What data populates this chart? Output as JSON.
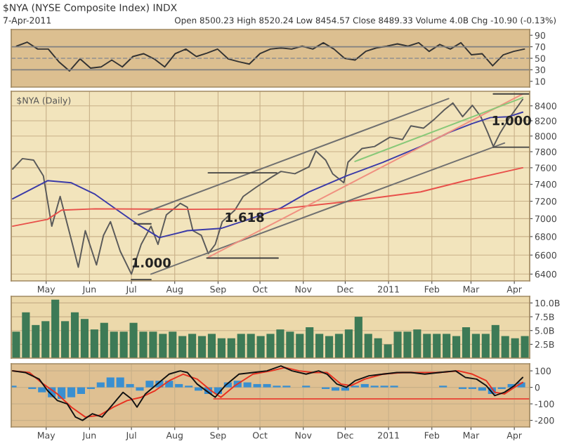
{
  "chart_data": [
    {
      "type": "line",
      "title": "$NYA (NYSE Composite Index) INDX",
      "subtitle": "7-Apr-2011",
      "annotations": [
        "Open 8500.23 High 8520.24 Low 8454.57 Close 8489.33 Volume 4.0B Chg -10.90 (-0.13%)"
      ],
      "categories": [
        null,
        null,
        null,
        null,
        null,
        null,
        null,
        null,
        null,
        null,
        null,
        null,
        null,
        null,
        null,
        null,
        null,
        null,
        null,
        null,
        null,
        null,
        null,
        null,
        null,
        null,
        null,
        null,
        null,
        null,
        null,
        null,
        null,
        null,
        null,
        null,
        null,
        null,
        null,
        null,
        null,
        null,
        null,
        null,
        null,
        null,
        null,
        null,
        null
      ],
      "ylim": [
        0,
        100
      ],
      "yticks": [
        10,
        30,
        50,
        70,
        90
      ],
      "ref_lines": [
        {
          "axis": "y",
          "value": 70,
          "color": "#808080"
        },
        {
          "axis": "y",
          "value": 50,
          "color": "#909090",
          "line_style": "dashed"
        },
        {
          "axis": "y",
          "value": 30,
          "color": "#808080"
        }
      ],
      "series": [
        {
          "color": "#333333",
          "values": [
            71,
            78,
            66,
            66,
            44,
            28,
            49,
            33,
            35,
            47,
            35,
            53,
            58,
            49,
            35,
            58,
            66,
            53,
            59,
            66,
            49,
            44,
            40,
            58,
            66,
            68,
            66,
            71,
            66,
            77,
            66,
            50,
            47,
            62,
            68,
            71,
            75,
            71,
            77,
            62,
            74,
            66,
            77,
            56,
            58,
            37,
            56,
            62,
            66
          ]
        }
      ]
    },
    {
      "type": "line",
      "log": "y",
      "annotations": [
        "$NYA (Daily)",
        "1.000",
        "1.618",
        "1.000"
      ],
      "xlim": [
        "2010-04-06",
        "2011-04-12"
      ],
      "xticks": [
        {
          "value": "2010-05-01",
          "label": "May"
        },
        {
          "value": "2010-06-01",
          "label": "Jun"
        },
        {
          "value": "2010-07-01",
          "label": "Jul"
        },
        {
          "value": "2010-08-01",
          "label": "Aug"
        },
        {
          "value": "2010-09-01",
          "label": "Sep"
        },
        {
          "value": "2010-10-01",
          "label": "Oct"
        },
        {
          "value": "2010-11-01",
          "label": "Nov"
        },
        {
          "value": "2010-12-01",
          "label": "Dec"
        },
        {
          "value": "2011-01-01",
          "label": "2011"
        },
        {
          "value": "2011-02-01",
          "label": "Feb"
        },
        {
          "value": "2011-03-01",
          "label": "Mar"
        },
        {
          "value": "2011-04-01",
          "label": "Apr"
        }
      ],
      "ylim": [
        6330,
        8600
      ],
      "yticks": [
        6400,
        6600,
        6800,
        7000,
        7200,
        7400,
        7600,
        7800,
        8000,
        8200,
        8400
      ],
      "grid": true,
      "series": [
        {
          "color": "#5a5a5a",
          "x": [
            "2010-04-07",
            "2010-04-14",
            "2010-04-22",
            "2010-04-29",
            "2010-05-05",
            "2010-05-11",
            "2010-05-19",
            "2010-05-24",
            "2010-05-29",
            "2010-06-06",
            "2010-06-11",
            "2010-06-16",
            "2010-06-23",
            "2010-07-01",
            "2010-07-08",
            "2010-07-15",
            "2010-07-20",
            "2010-07-26",
            "2010-08-05",
            "2010-08-10",
            "2010-08-14",
            "2010-08-20",
            "2010-08-25",
            "2010-08-30",
            "2010-09-04",
            "2010-09-13",
            "2010-09-19",
            "2010-09-28",
            "2010-10-08",
            "2010-10-16",
            "2010-10-26",
            "2010-11-05",
            "2010-11-10",
            "2010-11-17",
            "2010-11-22",
            "2010-11-30",
            "2010-12-03",
            "2010-12-13",
            "2010-12-22",
            "2011-01-02",
            "2011-01-11",
            "2011-01-17",
            "2011-01-26",
            "2011-02-03",
            "2011-02-10",
            "2011-02-16",
            "2011-02-23",
            "2011-03-02",
            "2011-03-08",
            "2011-03-13",
            "2011-03-17",
            "2011-03-22",
            "2011-03-28",
            "2011-04-04",
            "2011-04-07"
          ],
          "values": [
            7584,
            7713,
            7695,
            7501,
            6915,
            7256,
            6764,
            6471,
            6865,
            6496,
            6813,
            6966,
            6641,
            6400,
            6715,
            6915,
            6715,
            7043,
            7175,
            7130,
            6865,
            6813,
            6616,
            6715,
            6966,
            7097,
            7256,
            7362,
            7472,
            7555,
            7527,
            7610,
            7809,
            7695,
            7527,
            7418,
            7668,
            7840,
            7866,
            7985,
            7955,
            8132,
            8102,
            8224,
            8347,
            8439,
            8254,
            8407,
            8254,
            8044,
            7866,
            8044,
            8224,
            8407,
            8489
          ]
        },
        {
          "color": "#3a3aa8",
          "x": [
            "2010-04-07",
            "2010-05-02",
            "2010-05-19",
            "2010-06-05",
            "2010-06-21",
            "2010-07-05",
            "2010-07-21",
            "2010-08-10",
            "2010-09-03",
            "2010-09-23",
            "2010-10-16",
            "2010-11-05",
            "2010-12-02",
            "2010-12-28",
            "2011-01-24",
            "2011-02-13",
            "2011-03-02",
            "2011-03-15",
            "2011-03-28",
            "2011-04-07"
          ],
          "values": [
            7228,
            7443,
            7418,
            7281,
            7097,
            6941,
            6789,
            6865,
            6890,
            6992,
            7122,
            7309,
            7501,
            7668,
            7866,
            8044,
            8163,
            8243,
            8254,
            8314
          ]
        },
        {
          "color": "#e8504a",
          "x": [
            "2010-04-07",
            "2010-05-02",
            "2010-05-12",
            "2010-06-05",
            "2010-08-10",
            "2010-10-16",
            "2010-12-05",
            "2011-01-24",
            "2011-02-25",
            "2011-04-07"
          ],
          "values": [
            6915,
            6992,
            7097,
            7112,
            7106,
            7112,
            7201,
            7309,
            7443,
            7600
          ]
        },
        {
          "color": "#707070",
          "x": [
            "2010-07-06",
            "2011-02-13"
          ],
          "values": [
            7043,
            8499
          ]
        },
        {
          "color": "#707070",
          "x": [
            "2010-07-15",
            "2011-03-25"
          ],
          "values": [
            6400,
            7910
          ]
        },
        {
          "color": "#f09080",
          "x": [
            "2010-08-25",
            "2011-04-07"
          ],
          "values": [
            6577,
            8563
          ]
        },
        {
          "color": "#88c878",
          "x": [
            "2010-12-08",
            "2011-04-07"
          ],
          "values": [
            7678,
            8512
          ]
        },
        {
          "color": "#404040",
          "x": [
            "2010-08-25",
            "2010-10-13"
          ],
          "values": [
            7538,
            7538
          ]
        },
        {
          "color": "#404040",
          "x": [
            "2010-08-24",
            "2010-10-14"
          ],
          "values": [
            6568,
            6568
          ]
        },
        {
          "color": "#404040",
          "x": [
            "2010-07-01",
            "2010-07-15"
          ],
          "values": [
            6343,
            6343
          ]
        },
        {
          "color": "#404040",
          "x": [
            "2010-07-03",
            "2010-07-15"
          ],
          "values": [
            6941,
            6941
          ]
        },
        {
          "color": "#404040",
          "x": [
            "2011-03-17",
            "2011-04-12"
          ],
          "values": [
            8563,
            8563
          ]
        },
        {
          "color": "#404040",
          "x": [
            "2011-03-17",
            "2011-04-12"
          ],
          "values": [
            7857,
            7857
          ]
        }
      ]
    },
    {
      "type": "bar",
      "categories": [
        null,
        null,
        null,
        null,
        null,
        null,
        null,
        null,
        null,
        null,
        null,
        null,
        null,
        null,
        null,
        null,
        null,
        null,
        null,
        null,
        null,
        null,
        null,
        null,
        null,
        null,
        null,
        null,
        null,
        null,
        null,
        null,
        null,
        null,
        null,
        null,
        null,
        null,
        null,
        null,
        null,
        null,
        null,
        null,
        null,
        null,
        null,
        null,
        null,
        null,
        null,
        null,
        null
      ],
      "ylim": [
        0,
        11.2
      ],
      "yticks": [
        {
          "value": 2.5,
          "label": "2.5B"
        },
        {
          "value": 5,
          "label": "5.0B"
        },
        {
          "value": 7.5,
          "label": "7.5B"
        },
        {
          "value": 10,
          "label": "10.0B"
        }
      ],
      "grid": "y",
      "series": [
        {
          "color": "#3d7a56",
          "values": [
            4.8,
            8.3,
            6.0,
            6.7,
            10.6,
            6.7,
            8.3,
            7.1,
            5.2,
            6.4,
            4.8,
            4.8,
            6.4,
            4.8,
            4.8,
            4.4,
            4.8,
            4.0,
            4.4,
            4.0,
            4.4,
            3.6,
            3.6,
            4.4,
            4.4,
            4.0,
            4.4,
            5.2,
            4.8,
            4.4,
            5.6,
            4.4,
            4.0,
            4.4,
            5.2,
            7.5,
            4.4,
            3.6,
            2.5,
            4.8,
            4.8,
            5.2,
            4.4,
            4.4,
            4.4,
            4.0,
            5.6,
            4.4,
            4.4,
            6.0,
            4.0,
            3.6,
            4.0
          ]
        }
      ]
    },
    {
      "type": "line",
      "xlim": [
        "2010-04-06",
        "2011-04-12"
      ],
      "xticks": [
        {
          "value": "2010-05-01",
          "label": "May"
        },
        {
          "value": "2010-06-01",
          "label": "Jun"
        },
        {
          "value": "2010-07-01",
          "label": "Jul"
        },
        {
          "value": "2010-08-01",
          "label": "Aug"
        },
        {
          "value": "2010-09-01",
          "label": "Sep"
        },
        {
          "value": "2010-10-01",
          "label": "Oct"
        },
        {
          "value": "2010-11-01",
          "label": "Nov"
        },
        {
          "value": "2010-12-01",
          "label": "Dec"
        },
        {
          "value": "2011-01-01",
          "label": "2011"
        },
        {
          "value": "2011-02-01",
          "label": "Feb"
        },
        {
          "value": "2011-03-01",
          "label": "Mar"
        },
        {
          "value": "2011-04-01",
          "label": "Apr"
        }
      ],
      "ylim": [
        -240,
        143
      ],
      "yticks": [
        -200,
        -100,
        0,
        100
      ],
      "grid": true,
      "series": [
        {
          "type": "bar",
          "color": "#3a8fd0",
          "x": [
            "2010-04-07",
            "2010-04-14",
            "2010-04-21",
            "2010-04-28",
            "2010-05-05",
            "2010-05-12",
            "2010-05-19",
            "2010-05-26",
            "2010-06-02",
            "2010-06-09",
            "2010-06-16",
            "2010-06-23",
            "2010-06-30",
            "2010-07-07",
            "2010-07-14",
            "2010-07-21",
            "2010-07-28",
            "2010-08-04",
            "2010-08-11",
            "2010-08-18",
            "2010-08-25",
            "2010-09-01",
            "2010-09-08",
            "2010-09-15",
            "2010-09-22",
            "2010-09-29",
            "2010-10-06",
            "2010-10-13",
            "2010-10-20",
            "2010-10-27",
            "2010-11-03",
            "2010-11-10",
            "2010-11-17",
            "2010-11-24",
            "2010-12-01",
            "2010-12-08",
            "2010-12-15",
            "2010-12-22",
            "2010-12-29",
            "2011-01-05",
            "2011-01-12",
            "2011-01-19",
            "2011-01-26",
            "2011-02-02",
            "2011-02-09",
            "2011-02-16",
            "2011-02-23",
            "2011-03-02",
            "2011-03-09",
            "2011-03-16",
            "2011-03-23",
            "2011-03-30",
            "2011-04-06"
          ],
          "values": [
            10,
            0,
            -10,
            -30,
            -60,
            -70,
            -60,
            -40,
            -10,
            30,
            60,
            60,
            20,
            -20,
            40,
            40,
            40,
            20,
            10,
            -20,
            -40,
            -40,
            30,
            40,
            30,
            20,
            20,
            10,
            10,
            0,
            10,
            0,
            -10,
            -20,
            -20,
            10,
            20,
            10,
            10,
            10,
            0,
            0,
            0,
            0,
            10,
            0,
            -10,
            -10,
            -20,
            -40,
            -10,
            20,
            30
          ]
        },
        {
          "color": "#e85040",
          "x": [
            "2010-08-29",
            "2011-04-12"
          ],
          "values": [
            -70,
            -70
          ]
        },
        {
          "color": "#e83020",
          "x": [
            "2010-04-07",
            "2010-04-19",
            "2010-04-29",
            "2010-05-09",
            "2010-05-19",
            "2010-05-29",
            "2010-06-08",
            "2010-06-18",
            "2010-06-28",
            "2010-07-08",
            "2010-07-18",
            "2010-07-28",
            "2010-08-07",
            "2010-08-17",
            "2010-08-27",
            "2010-09-03",
            "2010-09-13",
            "2010-09-26",
            "2010-10-09",
            "2010-10-19",
            "2010-10-29",
            "2010-11-08",
            "2010-11-18",
            "2010-11-28",
            "2010-12-05",
            "2010-12-15",
            "2010-12-28",
            "2011-01-11",
            "2011-01-24",
            "2011-02-06",
            "2011-02-20",
            "2011-03-02",
            "2011-03-12",
            "2011-03-18",
            "2011-03-25",
            "2011-04-01",
            "2011-04-07"
          ],
          "values": [
            100,
            90,
            20,
            -40,
            -120,
            -180,
            -170,
            -120,
            -80,
            -60,
            -20,
            40,
            80,
            50,
            -20,
            -60,
            10,
            80,
            100,
            120,
            100,
            90,
            90,
            20,
            10,
            50,
            80,
            90,
            90,
            90,
            100,
            80,
            40,
            -30,
            -40,
            0,
            30
          ]
        },
        {
          "color": "#111111",
          "x": [
            "2010-04-07",
            "2010-04-16",
            "2010-04-26",
            "2010-05-02",
            "2010-05-09",
            "2010-05-16",
            "2010-05-22",
            "2010-05-27",
            "2010-06-03",
            "2010-06-10",
            "2010-06-18",
            "2010-06-25",
            "2010-07-01",
            "2010-07-05",
            "2010-07-11",
            "2010-07-18",
            "2010-07-28",
            "2010-08-05",
            "2010-08-10",
            "2010-08-17",
            "2010-08-25",
            "2010-08-30",
            "2010-09-06",
            "2010-09-16",
            "2010-09-26",
            "2010-10-06",
            "2010-10-16",
            "2010-10-24",
            "2010-11-03",
            "2010-11-12",
            "2010-11-18",
            "2010-11-25",
            "2010-12-02",
            "2010-12-08",
            "2010-12-18",
            "2010-12-28",
            "2011-01-07",
            "2011-01-17",
            "2011-01-27",
            "2011-02-06",
            "2011-02-18",
            "2011-02-25",
            "2011-03-05",
            "2011-03-12",
            "2011-03-18",
            "2011-03-25",
            "2011-04-01",
            "2011-04-07"
          ],
          "values": [
            100,
            90,
            50,
            -20,
            -80,
            -100,
            -180,
            -200,
            -160,
            -180,
            -100,
            -30,
            -70,
            -120,
            -40,
            10,
            80,
            100,
            90,
            20,
            -30,
            -60,
            10,
            80,
            90,
            100,
            130,
            100,
            80,
            100,
            80,
            20,
            0,
            40,
            70,
            80,
            90,
            90,
            80,
            90,
            100,
            60,
            50,
            10,
            -50,
            -30,
            10,
            60
          ]
        }
      ]
    }
  ]
}
